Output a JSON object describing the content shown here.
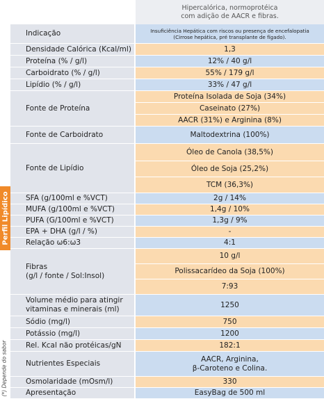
{
  "header": {
    "description": [
      "Hipercalórica, normoprotéica",
      "com adição de AACR e fibras."
    ]
  },
  "side_label": "Perfil Lipídico",
  "footnote": "(*) Depende do sabor",
  "rows": [
    {
      "label": "Indicação",
      "values": [
        [
          "Insuficiência Hepática com riscos ou presença de encefalopatia",
          "(Cirrose hepática, pré transplante de fígado)."
        ]
      ]
    },
    {
      "label": "Densidade Calórica (Kcal/ml)",
      "values": [
        "1,3"
      ]
    },
    {
      "label": "Proteína (% / g/l)",
      "values": [
        "12% / 40 g/l"
      ]
    },
    {
      "label": "Carboidrato (% / g/l)",
      "values": [
        "55% / 179 g/l"
      ]
    },
    {
      "label": "Lipídio (% / g/l)",
      "values": [
        "33% / 47 g/l"
      ]
    },
    {
      "label": "Fonte de Proteína",
      "values": [
        "Proteína Isolada de Soja (34%)",
        "Caseinato (27%)",
        "AACR (31%) e Arginina (8%)"
      ]
    },
    {
      "label": "Fonte de Carboidrato",
      "values": [
        "Maltodextrina (100%)"
      ]
    },
    {
      "label": "Fonte de Lipídio",
      "values": [
        "Óleo de Canola (38,5%)",
        "Óleo de Soja (25,2%)",
        "TCM (36,3%)"
      ]
    },
    {
      "label": "SFA (g/100ml e %VCT)",
      "values": [
        "2g / 14%"
      ]
    },
    {
      "label": "MUFA (g/100ml e %VCT)",
      "values": [
        "1,4g / 10%"
      ]
    },
    {
      "label": "PUFA (G/100ml e %VCT)",
      "values": [
        "1,3g / 9%"
      ]
    },
    {
      "label": "EPA + DHA (g/l / %)",
      "values": [
        "-"
      ]
    },
    {
      "label": "Relação ω6:ω3",
      "values": [
        "4:1"
      ]
    },
    {
      "label": [
        "Fibras",
        "(g/l / fonte / Sol:Insol)"
      ],
      "values": [
        "10 g/l",
        "Polissacarídeo da Soja (100%)",
        "7:93"
      ]
    },
    {
      "label": [
        "Volume médio para atingir",
        "vitaminas e minerais (ml)"
      ],
      "values": [
        "1250"
      ]
    },
    {
      "label": "Sódio (mg/l)",
      "values": [
        "750"
      ]
    },
    {
      "label": "Potássio (mg/l)",
      "values": [
        "1200"
      ]
    },
    {
      "label": "Rel. Kcal não protéicas/gN",
      "values": [
        "182:1"
      ]
    },
    {
      "label": "Nutrientes Especiais",
      "values": [
        [
          "AACR, Arginina,",
          "β-Caroteno e Colina."
        ]
      ]
    },
    {
      "label": "Osmolaridade (mOsm/l)",
      "values": [
        "330"
      ]
    },
    {
      "label": "Apresentação",
      "values": [
        "EasyBag de 500 ml"
      ]
    }
  ]
}
